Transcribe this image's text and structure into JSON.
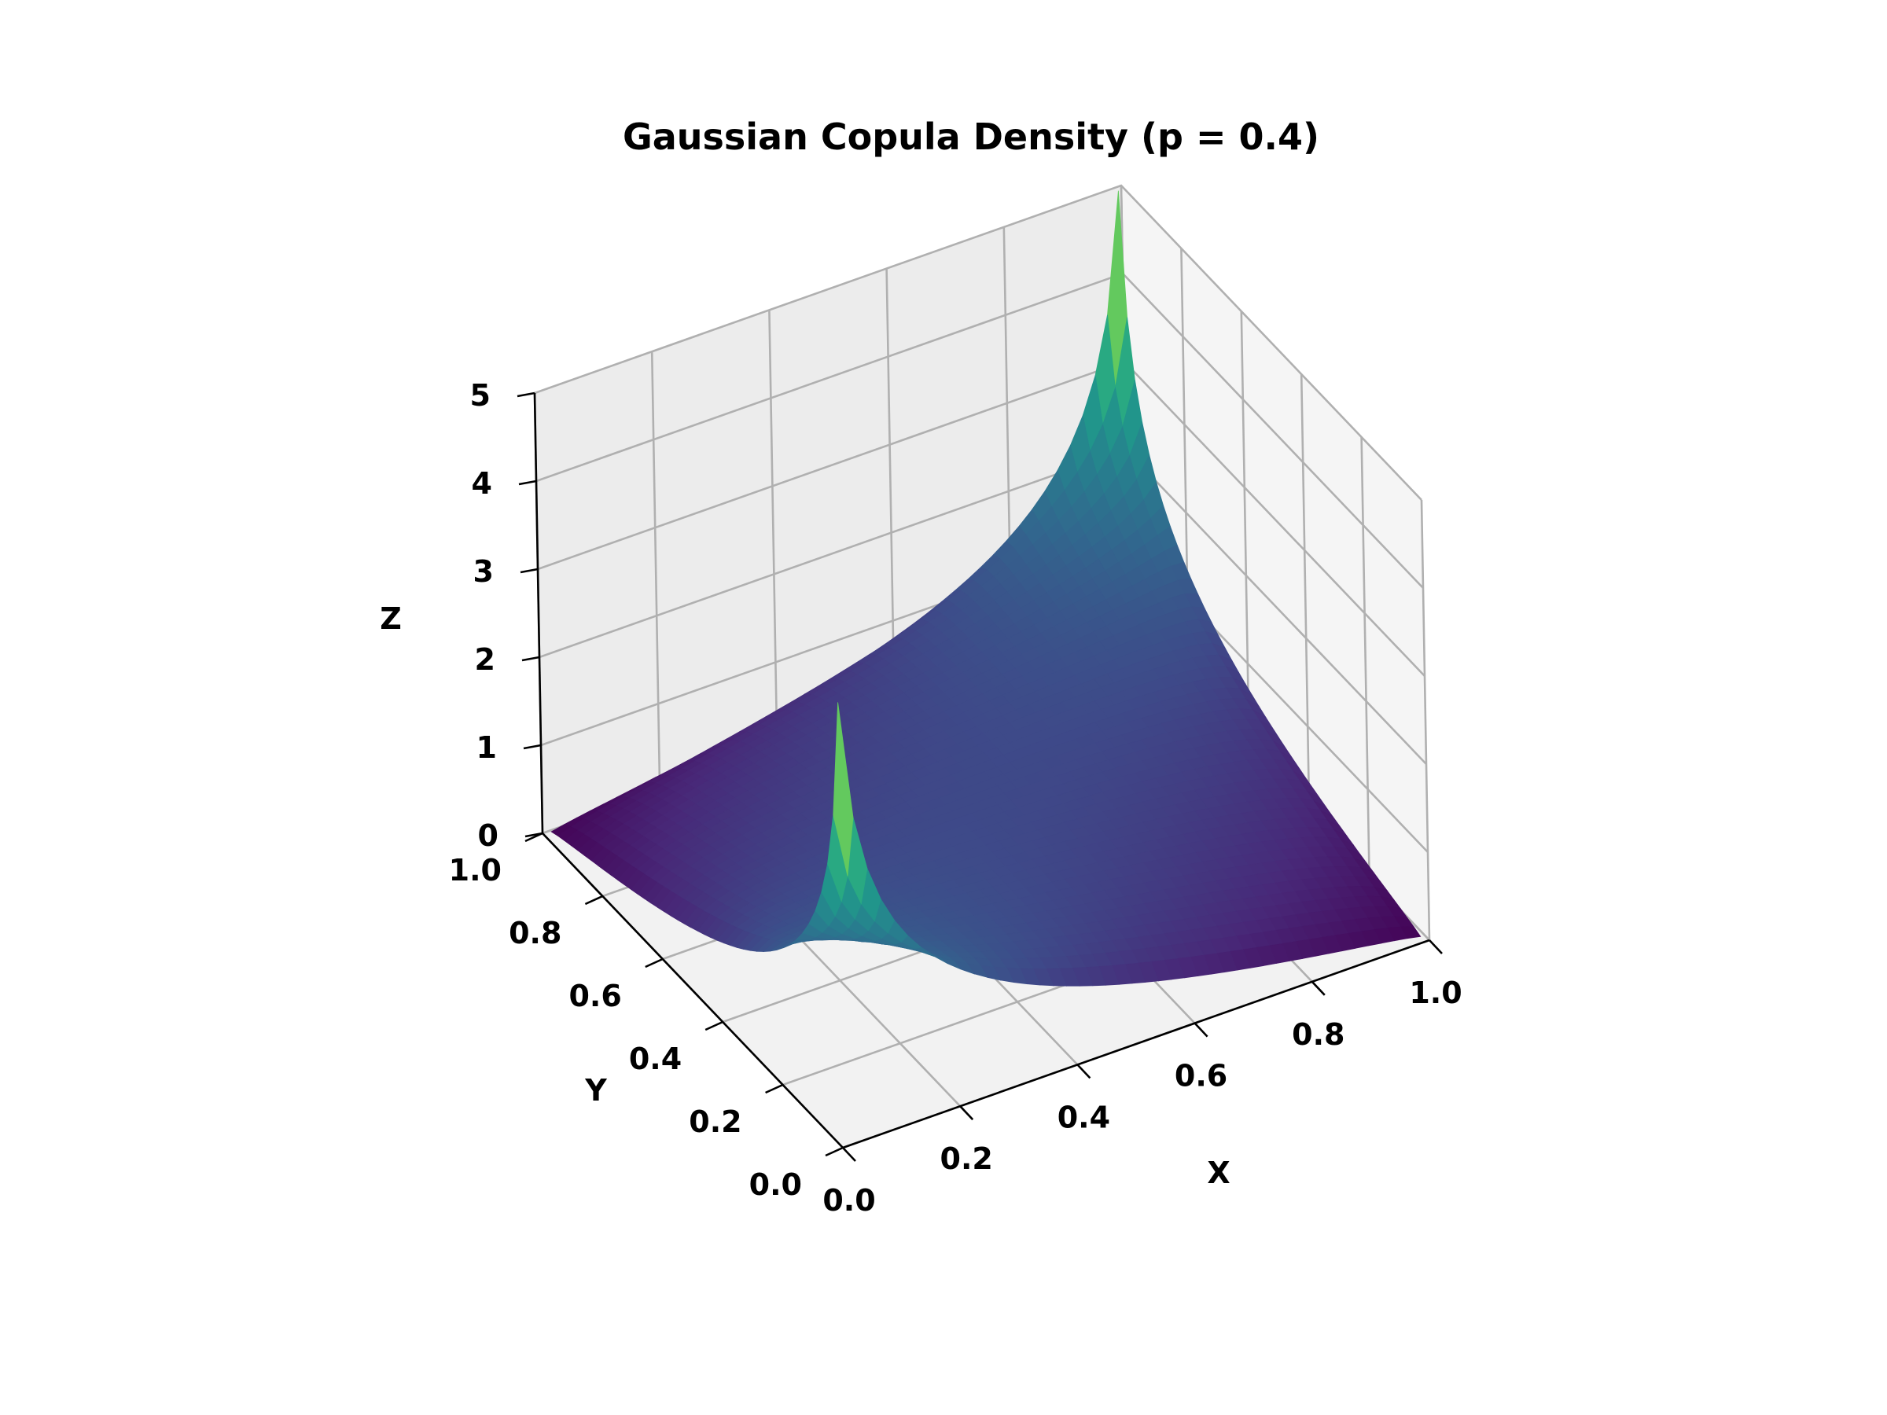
{
  "chart_data": {
    "type": "surface3d",
    "title": "Gaussian Copula Density (p = 0.4)",
    "xlabel": "X",
    "ylabel": "Y",
    "zlabel": "Z",
    "correlation": 0.4,
    "x_range": [
      0.0,
      1.0
    ],
    "y_range": [
      0.0,
      1.0
    ],
    "z_range": [
      0,
      5
    ],
    "x_ticks": [
      "0.0",
      "0.2",
      "0.4",
      "0.6",
      "0.8",
      "1.0"
    ],
    "y_ticks": [
      "0.0",
      "0.2",
      "0.4",
      "0.6",
      "0.8",
      "1.0"
    ],
    "z_ticks": [
      "0",
      "1",
      "2",
      "3",
      "4",
      "5"
    ],
    "peaks": [
      {
        "x": 0.0,
        "y": 0.0,
        "z": 4.4
      },
      {
        "x": 1.0,
        "y": 1.0,
        "z": 5.3
      }
    ],
    "colormap": "viridis",
    "grid": true,
    "pane_color": "#f2f2f2"
  }
}
